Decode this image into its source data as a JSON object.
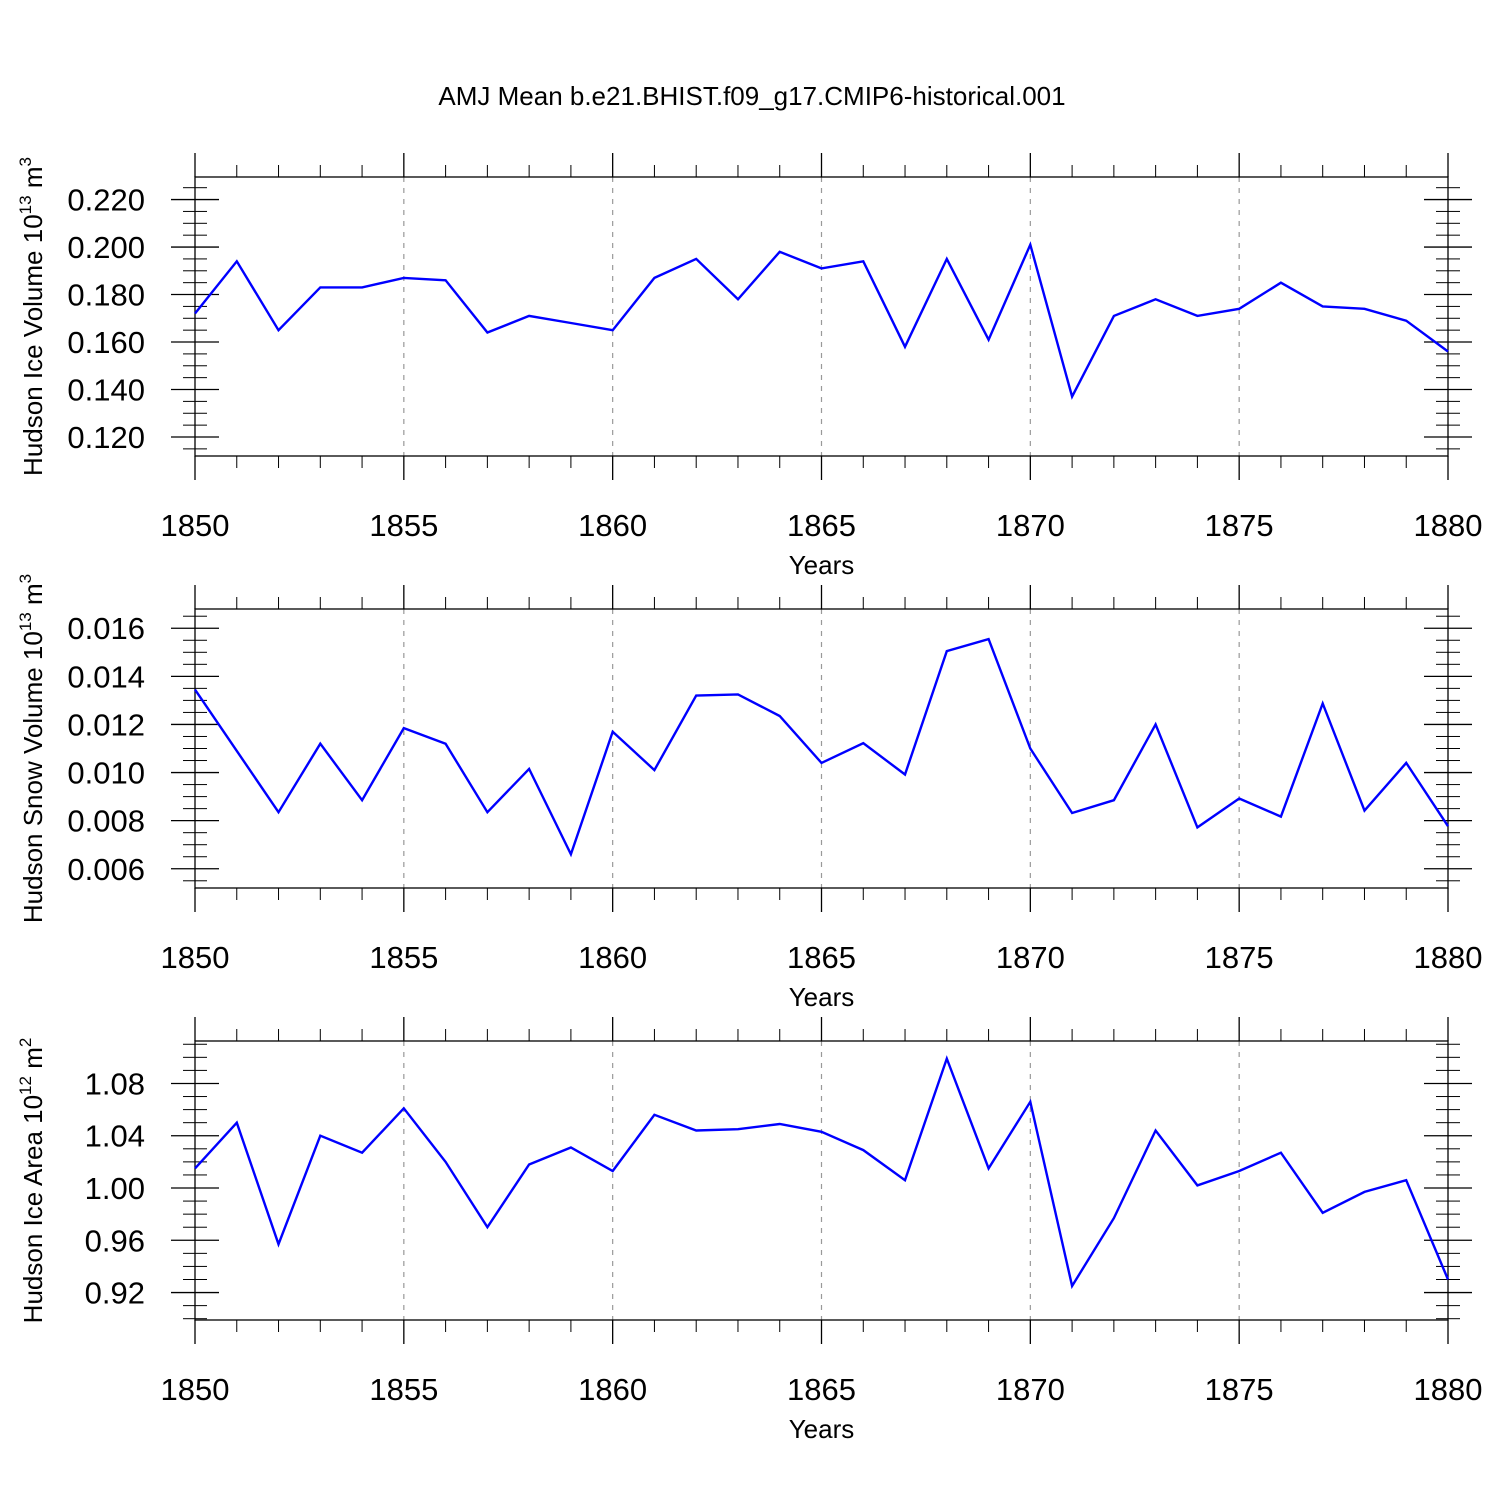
{
  "title": "AMJ Mean b.e21.BHIST.f09_g17.CMIP6-historical.001",
  "line_color": "#0000ff",
  "chart_data": [
    {
      "type": "line",
      "id": "ice-volume",
      "ylabel_main": "Hudson Ice Volume 10",
      "ylabel_exp": "13",
      "ylabel_unit": " m",
      "ylabel_unit_exp": "3",
      "xlabel": "Years",
      "xlim": [
        1850,
        1880
      ],
      "ylim": [
        0.112,
        0.2295
      ],
      "yticks": [
        0.12,
        0.14,
        0.16,
        0.18,
        0.2,
        0.22
      ],
      "ytick_labels": [
        "0.120",
        "0.140",
        "0.160",
        "0.180",
        "0.200",
        "0.220"
      ],
      "yminor": 0.005,
      "xticks": [
        1850,
        1855,
        1860,
        1865,
        1870,
        1875,
        1880
      ],
      "xtick_labels": [
        "1850",
        "1855",
        "1860",
        "1865",
        "1870",
        "1875",
        "1880"
      ],
      "x": [
        1850,
        1851,
        1852,
        1853,
        1854,
        1855,
        1856,
        1857,
        1858,
        1859,
        1860,
        1861,
        1862,
        1863,
        1864,
        1865,
        1866,
        1867,
        1868,
        1869,
        1870,
        1871,
        1872,
        1873,
        1874,
        1875,
        1876,
        1877,
        1878,
        1879,
        1880
      ],
      "values": [
        0.172,
        0.194,
        0.165,
        0.183,
        0.183,
        0.187,
        0.186,
        0.164,
        0.171,
        0.168,
        0.165,
        0.187,
        0.195,
        0.178,
        0.198,
        0.191,
        0.194,
        0.158,
        0.195,
        0.161,
        0.201,
        0.137,
        0.171,
        0.178,
        0.171,
        0.174,
        0.185,
        0.175,
        0.174,
        0.169,
        0.156
      ]
    },
    {
      "type": "line",
      "id": "snow-volume",
      "ylabel_main": "Hudson Snow Volume 10",
      "ylabel_exp": "13",
      "ylabel_unit": " m",
      "ylabel_unit_exp": "3",
      "xlabel": "Years",
      "xlim": [
        1850,
        1880
      ],
      "ylim": [
        0.0052,
        0.0168
      ],
      "yticks": [
        0.006,
        0.008,
        0.01,
        0.012,
        0.014,
        0.016
      ],
      "ytick_labels": [
        "0.006",
        "0.008",
        "0.010",
        "0.012",
        "0.014",
        "0.016"
      ],
      "yminor": 0.0005,
      "xticks": [
        1850,
        1855,
        1860,
        1865,
        1870,
        1875,
        1880
      ],
      "xtick_labels": [
        "1850",
        "1855",
        "1860",
        "1865",
        "1870",
        "1875",
        "1880"
      ],
      "x": [
        1850,
        1851,
        1852,
        1853,
        1854,
        1855,
        1856,
        1857,
        1858,
        1859,
        1860,
        1861,
        1862,
        1863,
        1864,
        1865,
        1866,
        1867,
        1868,
        1869,
        1870,
        1871,
        1872,
        1873,
        1874,
        1875,
        1876,
        1877,
        1878,
        1879,
        1880
      ],
      "values": [
        0.01345,
        0.0109,
        0.00835,
        0.0112,
        0.00885,
        0.01185,
        0.0112,
        0.00835,
        0.01015,
        0.0066,
        0.0117,
        0.0101,
        0.0132,
        0.01325,
        0.01235,
        0.0104,
        0.01122,
        0.00992,
        0.01505,
        0.01555,
        0.011,
        0.00832,
        0.00885,
        0.012,
        0.00772,
        0.00892,
        0.00817,
        0.01287,
        0.00842,
        0.0104,
        0.00777
      ]
    },
    {
      "type": "line",
      "id": "ice-area",
      "ylabel_main": "Hudson Ice Area 10",
      "ylabel_exp": "12",
      "ylabel_unit": " m",
      "ylabel_unit_exp": "2",
      "xlabel": "Years",
      "xlim": [
        1850,
        1880
      ],
      "ylim": [
        0.899,
        1.1125
      ],
      "yticks": [
        0.92,
        0.96,
        1.0,
        1.04,
        1.08
      ],
      "ytick_labels": [
        "0.92",
        "0.96",
        "1.00",
        "1.04",
        "1.08"
      ],
      "yminor": 0.01,
      "xticks": [
        1850,
        1855,
        1860,
        1865,
        1870,
        1875,
        1880
      ],
      "xtick_labels": [
        "1850",
        "1855",
        "1860",
        "1865",
        "1870",
        "1875",
        "1880"
      ],
      "x": [
        1850,
        1851,
        1852,
        1853,
        1854,
        1855,
        1856,
        1857,
        1858,
        1859,
        1860,
        1861,
        1862,
        1863,
        1864,
        1865,
        1866,
        1867,
        1868,
        1869,
        1870,
        1871,
        1872,
        1873,
        1874,
        1875,
        1876,
        1877,
        1878,
        1879,
        1880
      ],
      "values": [
        1.015,
        1.05,
        0.957,
        1.04,
        1.027,
        1.061,
        1.02,
        0.97,
        1.018,
        1.031,
        1.013,
        1.056,
        1.044,
        1.045,
        1.049,
        1.043,
        1.029,
        1.006,
        1.099,
        1.015,
        1.066,
        0.925,
        0.977,
        1.044,
        1.002,
        1.013,
        1.027,
        0.981,
        0.997,
        1.006,
        0.93
      ]
    }
  ]
}
